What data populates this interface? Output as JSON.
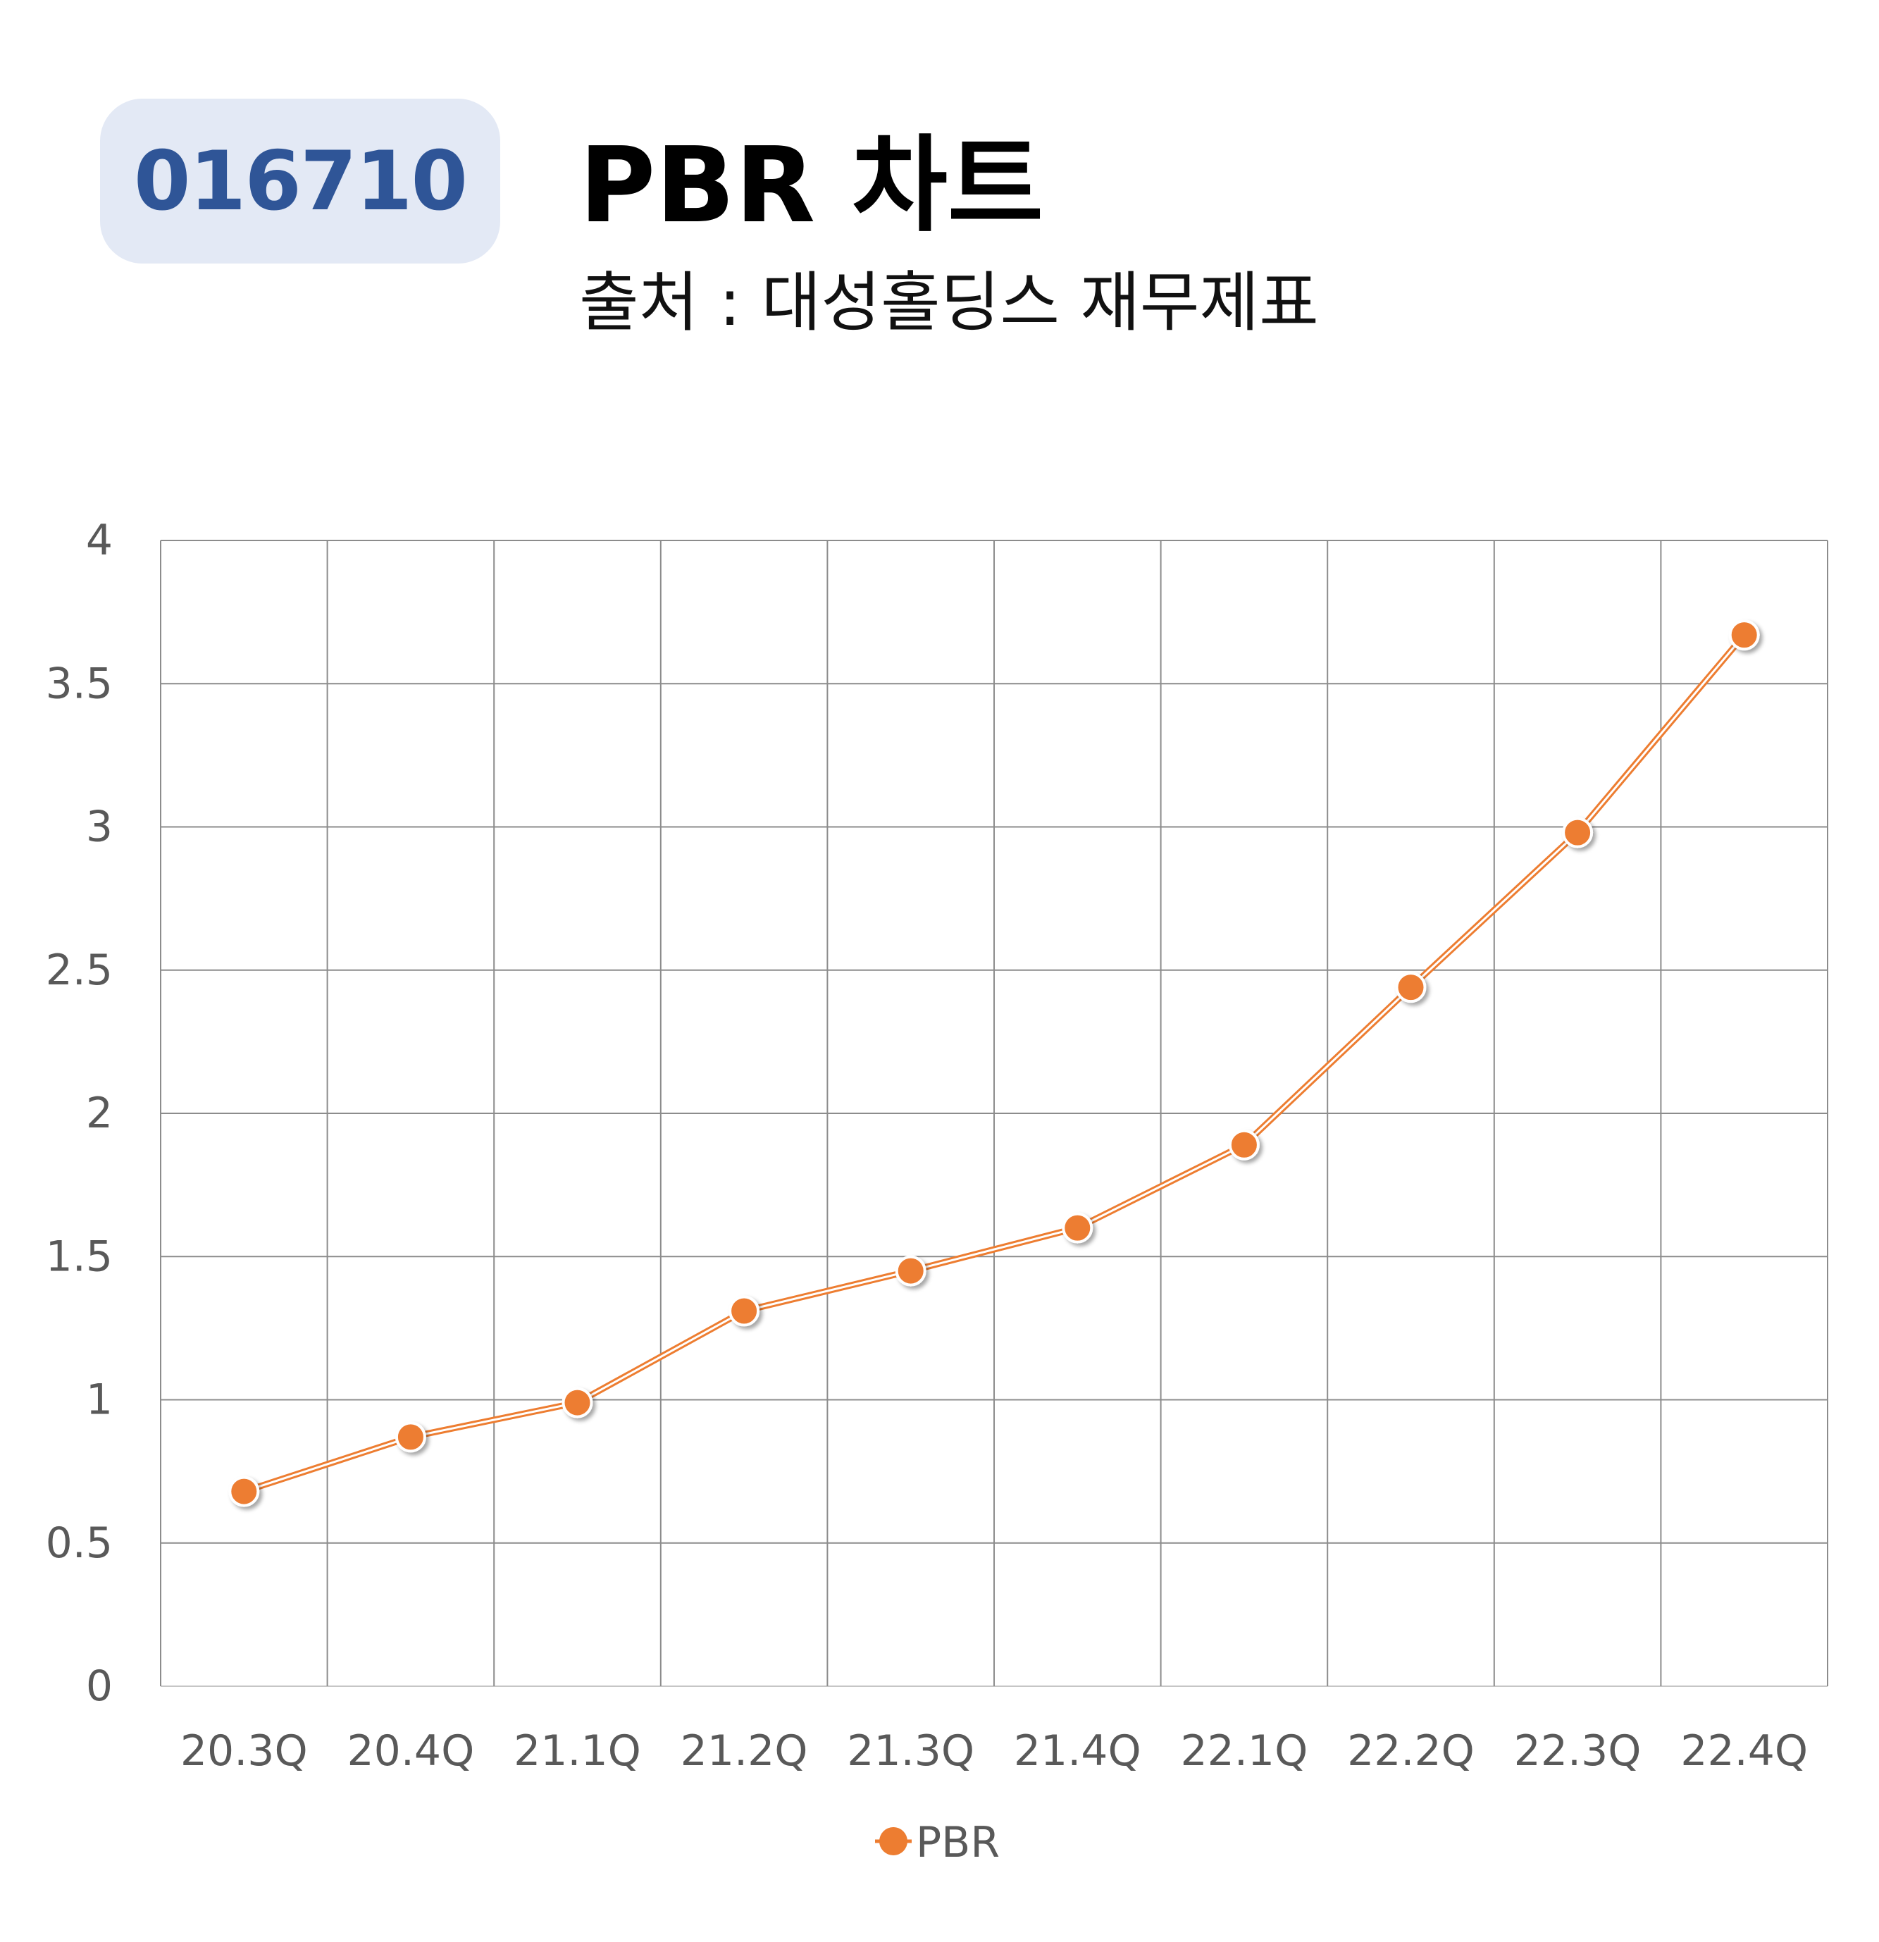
{
  "header": {
    "code": "016710",
    "title": "PBR 차트",
    "subtitle": "출처 : 대성홀딩스 재무제표"
  },
  "colors": {
    "badge_bg": "#e3e9f5",
    "badge_text": "#2f5597",
    "series": "#ed7d31",
    "grid": "#8c8c8c",
    "tick_text": "#595959"
  },
  "chart_data": {
    "type": "line",
    "categories": [
      "20.3Q",
      "20.4Q",
      "21.1Q",
      "21.2Q",
      "21.3Q",
      "21.4Q",
      "22.1Q",
      "22.2Q",
      "22.3Q",
      "22.4Q"
    ],
    "series": [
      {
        "name": "PBR",
        "values": [
          0.68,
          0.87,
          0.99,
          1.31,
          1.45,
          1.6,
          1.89,
          2.44,
          2.98,
          3.67
        ]
      }
    ],
    "ylim": [
      0,
      4
    ],
    "yticks": [
      "0",
      "0.5",
      "1",
      "1.5",
      "2",
      "2.5",
      "3",
      "3.5",
      "4"
    ],
    "grid": true,
    "legend_position": "bottom",
    "xlabel": "",
    "ylabel": ""
  }
}
